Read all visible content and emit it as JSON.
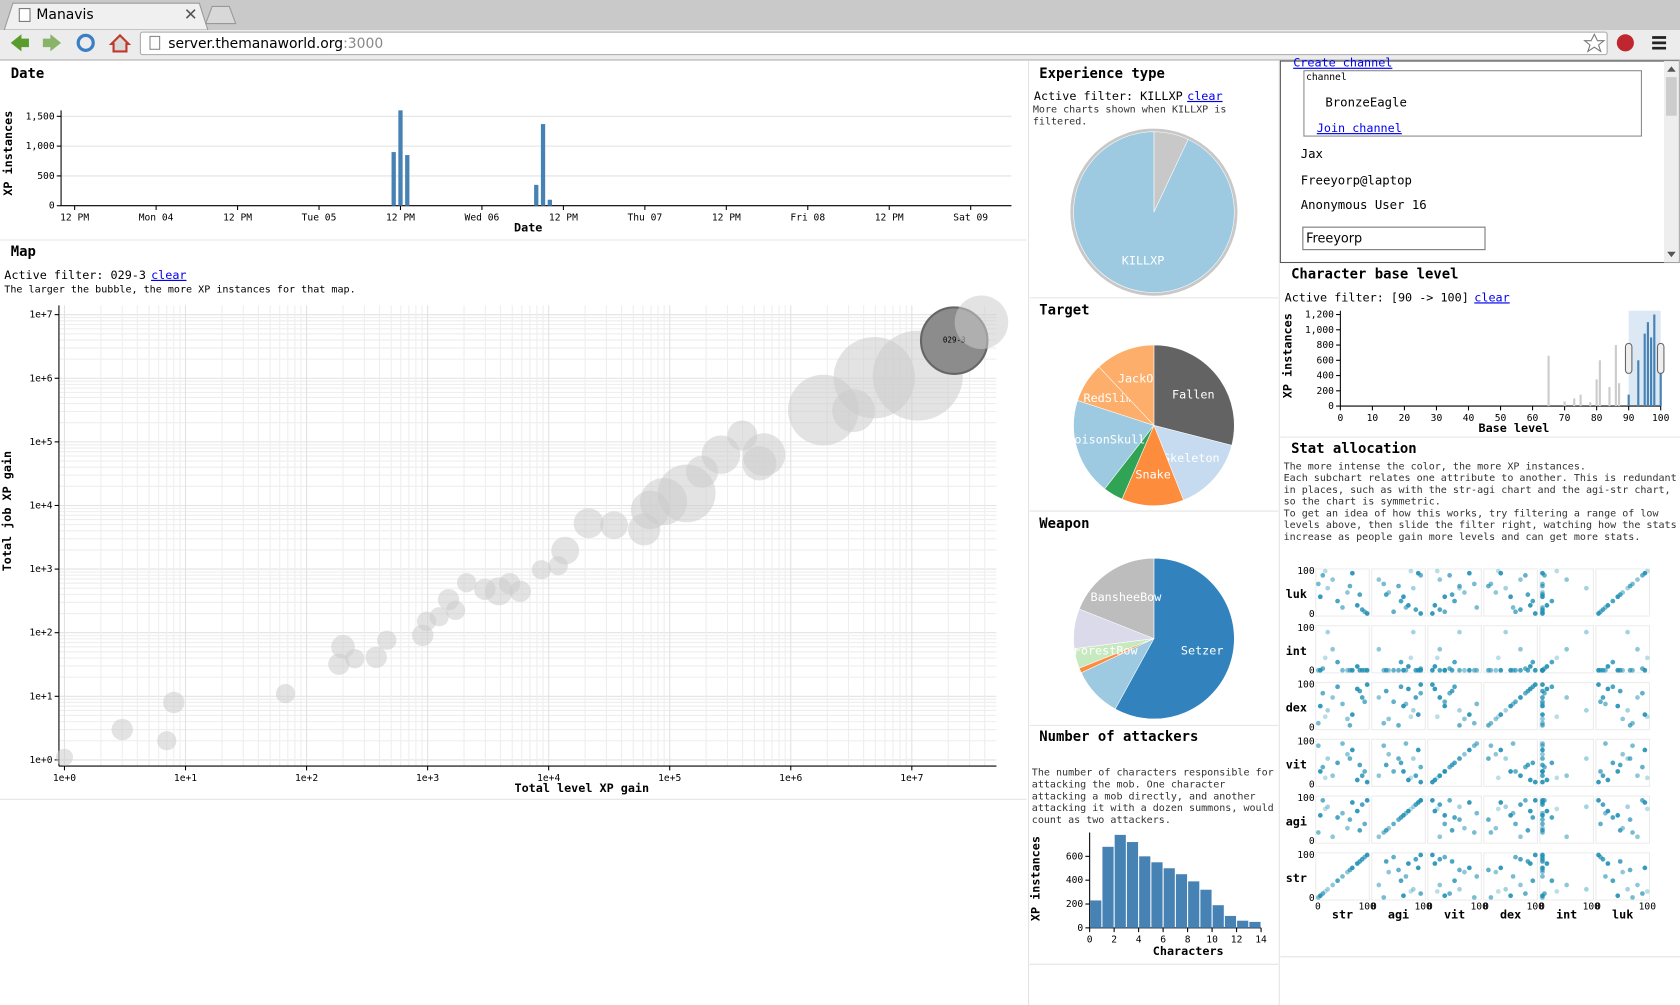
{
  "browser": {
    "tab_title": "Manavis",
    "url_host": "server.themanaworld.org",
    "url_port": ":3000"
  },
  "chat": {
    "create_channel": "Create channel",
    "channel_legend": "channel",
    "channel_name": "BronzeEagle",
    "join_channel": "Join channel",
    "users": [
      "Jax",
      "Freeyorp@laptop",
      "Anonymous User 16"
    ],
    "input_value": "Freeyorp"
  },
  "chart_data": [
    {
      "type": "bar",
      "title": "Date",
      "x_label": "Date",
      "y_label": "XP instances",
      "x": [
        47,
        48,
        49,
        68,
        69,
        70
      ],
      "values": [
        900,
        1600,
        850,
        350,
        1370,
        100
      ],
      "color": "#4682b4",
      "xlim": [
        -2,
        138
      ],
      "xticks": [
        {
          "value": 0,
          "label": "12 PM"
        },
        {
          "value": 12,
          "label": "Mon 04"
        },
        {
          "value": 24,
          "label": "12 PM"
        },
        {
          "value": 36,
          "label": "Tue 05"
        },
        {
          "value": 48,
          "label": "12 PM"
        },
        {
          "value": 60,
          "label": "Wed 06"
        },
        {
          "value": 72,
          "label": "12 PM"
        },
        {
          "value": 84,
          "label": "Thu 07"
        },
        {
          "value": 96,
          "label": "12 PM"
        },
        {
          "value": 108,
          "label": "Fri 08"
        },
        {
          "value": 120,
          "label": "12 PM"
        },
        {
          "value": 132,
          "label": "Sat 09"
        }
      ],
      "ylim": [
        0,
        1600
      ],
      "yticks": [
        0,
        500,
        {
          "value": 1000,
          "label": "1,000"
        },
        {
          "value": 1500,
          "label": "1,500"
        }
      ],
      "grid": "y"
    },
    {
      "type": "bubble",
      "title": "Map",
      "filter_label": "Active filter: 029-3",
      "clear_label": "clear",
      "note": "The larger the bubble, the more XP instances for that map.",
      "x_label": "Total level XP gain",
      "y_label": "Total job XP gain",
      "log_scale": true,
      "x": [
        1,
        3,
        7,
        8,
        67,
        200,
        185,
        250,
        376,
        460,
        910,
        980,
        1245,
        1490,
        1700,
        2100,
        2970,
        3880,
        4760,
        5820,
        8710,
        12000,
        13700,
        21400,
        34700,
        61500,
        69000,
        89000,
        138000,
        185000,
        265000,
        398000,
        600000,
        550000,
        1860000,
        3300000,
        4900000,
        11200000,
        22400000,
        37600000
      ],
      "values": [
        1.1,
        3,
        2,
        8,
        11,
        60,
        32,
        39,
        41,
        76,
        91,
        151,
        178,
        330,
        224,
        610,
        480,
        447,
        590,
        447,
        977,
        1130,
        1950,
        5250,
        4900,
        4200,
        8500,
        11500,
        15500,
        34000,
        63000,
        126000,
        63000,
        46000,
        316000,
        309000,
        1020000,
        1100000,
        3900000,
        7600000
      ],
      "sizes": [
        64,
        100,
        81,
        100,
        81,
        121,
        100,
        81,
        100,
        81,
        100,
        81,
        81,
        100,
        81,
        81,
        100,
        169,
        100,
        100,
        81,
        81,
        169,
        196,
        169,
        225,
        324,
        484,
        729,
        225,
        324,
        196,
        400,
        256,
        1089,
        400,
        1444,
        1764,
        961,
        625
      ],
      "point_labels": [
        null,
        null,
        null,
        null,
        null,
        null,
        null,
        null,
        null,
        null,
        null,
        null,
        null,
        null,
        null,
        null,
        null,
        null,
        null,
        null,
        null,
        null,
        null,
        null,
        null,
        null,
        null,
        null,
        null,
        null,
        null,
        null,
        null,
        null,
        null,
        null,
        null,
        null,
        "029-3",
        null
      ],
      "color": "#cccccc",
      "highlight_color": "#8c8c8c",
      "xlim": [
        0.9,
        50000000
      ],
      "ylim": [
        0.8,
        14000000
      ],
      "xticks": [
        {
          "value": 1,
          "label": "1e+0"
        },
        {
          "value": 10,
          "label": "1e+1"
        },
        {
          "value": 100,
          "label": "1e+2"
        },
        {
          "value": 1000,
          "label": "1e+3"
        },
        {
          "value": 10000,
          "label": "1e+4"
        },
        {
          "value": 100000,
          "label": "1e+5"
        },
        {
          "value": 1000000,
          "label": "1e+6"
        },
        {
          "value": 10000000,
          "label": "1e+7"
        }
      ],
      "yticks": [
        {
          "value": 1,
          "label": "1e+0"
        },
        {
          "value": 10,
          "label": "1e+1"
        },
        {
          "value": 100,
          "label": "1e+2"
        },
        {
          "value": 1000,
          "label": "1e+3"
        },
        {
          "value": 10000,
          "label": "1e+4"
        },
        {
          "value": 100000,
          "label": "1e+5"
        },
        {
          "value": 1000000,
          "label": "1e+6"
        },
        {
          "value": 10000000,
          "label": "1e+7"
        }
      ],
      "grid": "both"
    },
    {
      "type": "pie",
      "title": "Experience type",
      "filter_label": "Active filter: KILLXP",
      "clear_label": "clear",
      "note": "More charts shown when KILLXP is filtered.",
      "categories": [
        null,
        "KILLXP"
      ],
      "values": [
        7,
        93
      ],
      "colors": [
        "#c8c8c8",
        "#9ecae1"
      ]
    },
    {
      "type": "pie",
      "title": "Target",
      "categories": [
        "Fallen",
        "Skeleton",
        "Snake",
        null,
        "PoisonSkull",
        "RedSlime",
        "JackO"
      ],
      "values": [
        29,
        15,
        12.5,
        4,
        19.5,
        8,
        12
      ],
      "colors": [
        "#636363",
        "#c6dbef",
        "#fd8d3c",
        "#31a354",
        "#9ecae1",
        "#fdae6b",
        "#fdae6b"
      ]
    },
    {
      "type": "pie",
      "title": "Weapon",
      "categories": [
        "Setzer",
        null,
        null,
        "ForestBow",
        null,
        "BansheeBow"
      ],
      "values": [
        58,
        10,
        1,
        4,
        8,
        19
      ],
      "colors": [
        "#3182bd",
        "#9ecae1",
        "#fd8d3c",
        "#c7e9c0",
        "#dadaeb",
        "#bdbdbd"
      ]
    },
    {
      "type": "histogram",
      "title": "Number of attackers",
      "note": "The number of characters responsible for attacking the mob. One character attacking a mob directly, and another attacking it with a dozen summons, would count as two attackers.",
      "x_label": "Characters",
      "y_label": "XP instances",
      "bins": [
        0,
        1,
        2,
        3,
        4,
        5,
        6,
        7,
        8,
        9,
        10,
        11,
        12,
        13,
        14
      ],
      "values": [
        230,
        680,
        780,
        720,
        600,
        550,
        500,
        450,
        390,
        320,
        190,
        100,
        60,
        50
      ],
      "color": "#4682b4",
      "xlim": [
        0,
        14
      ],
      "xticks": [
        0,
        2,
        4,
        6,
        8,
        10,
        12,
        14
      ],
      "ylim": [
        0,
        800
      ],
      "yticks": [
        0,
        200,
        400,
        600
      ]
    },
    {
      "type": "bar",
      "title": "Character base level",
      "filter_label": "Active filter: [90 -> 100]",
      "clear_label": "clear",
      "x_label": "Base level",
      "y_label": "XP instances",
      "x": [
        65,
        70,
        73,
        75,
        78,
        80,
        81,
        84,
        86,
        87,
        90,
        93,
        95,
        96,
        97,
        98,
        100
      ],
      "values": [
        660,
        60,
        100,
        150,
        50,
        350,
        600,
        250,
        800,
        300,
        150,
        600,
        950,
        1100,
        900,
        1200,
        600
      ],
      "color": "#4682b4",
      "inactive_color": "#cccccc",
      "brush": [
        90,
        100
      ],
      "xlim": [
        0,
        100
      ],
      "xticks": [
        0,
        10,
        20,
        30,
        40,
        50,
        60,
        70,
        80,
        90,
        100
      ],
      "ylim": [
        0,
        1250
      ],
      "yticks": [
        0,
        200,
        400,
        600,
        800,
        {
          "value": 1000,
          "label": "1,000"
        },
        {
          "value": 1200,
          "label": "1,200"
        }
      ]
    },
    {
      "type": "scatter_matrix",
      "title": "Stat allocation",
      "note": [
        "The more intense the color, the more XP instances.",
        "Each subchart relates one attribute to another. This is redundant in places, such as with the str-agi chart and the agi-str chart, so the chart is symmetric.",
        "To get an idea of how this works, try filtering a range of low levels above, then slide the filter right, watching how the stats increase as people gain more levels and can get more stats."
      ],
      "dimensions": [
        "str",
        "agi",
        "vit",
        "dex",
        "int",
        "luk"
      ],
      "records": [
        [
          5,
          60,
          30,
          50,
          1,
          40
        ],
        [
          90,
          85,
          20,
          70,
          1,
          10
        ],
        [
          10,
          95,
          40,
          80,
          5,
          90
        ],
        [
          60,
          30,
          70,
          20,
          1,
          50
        ],
        [
          80,
          70,
          10,
          90,
          10,
          20
        ],
        [
          1,
          20,
          90,
          10,
          1,
          70
        ],
        [
          40,
          55,
          50,
          95,
          20,
          30
        ],
        [
          95,
          40,
          30,
          60,
          1,
          5
        ],
        [
          20,
          80,
          60,
          40,
          90,
          60
        ],
        [
          70,
          90,
          80,
          30,
          1,
          95
        ],
        [
          30,
          10,
          20,
          70,
          50,
          80
        ],
        [
          50,
          65,
          95,
          55,
          1,
          15
        ],
        [
          85,
          25,
          45,
          85,
          1,
          45
        ],
        [
          15,
          75,
          15,
          25,
          30,
          100
        ],
        [
          65,
          50,
          60,
          5,
          1,
          65
        ],
        [
          100,
          95,
          5,
          100,
          1,
          1
        ]
      ],
      "intensities": [
        0.9,
        0.8,
        0.7,
        0.5,
        0.9,
        0.6,
        0.8,
        0.7,
        0.4,
        0.9,
        0.5,
        0.6,
        0.8,
        0.3,
        0.7,
        0.9
      ],
      "lim": [
        0,
        100
      ],
      "ticks": [
        0,
        100
      ],
      "color": "#1f8fb4"
    }
  ]
}
